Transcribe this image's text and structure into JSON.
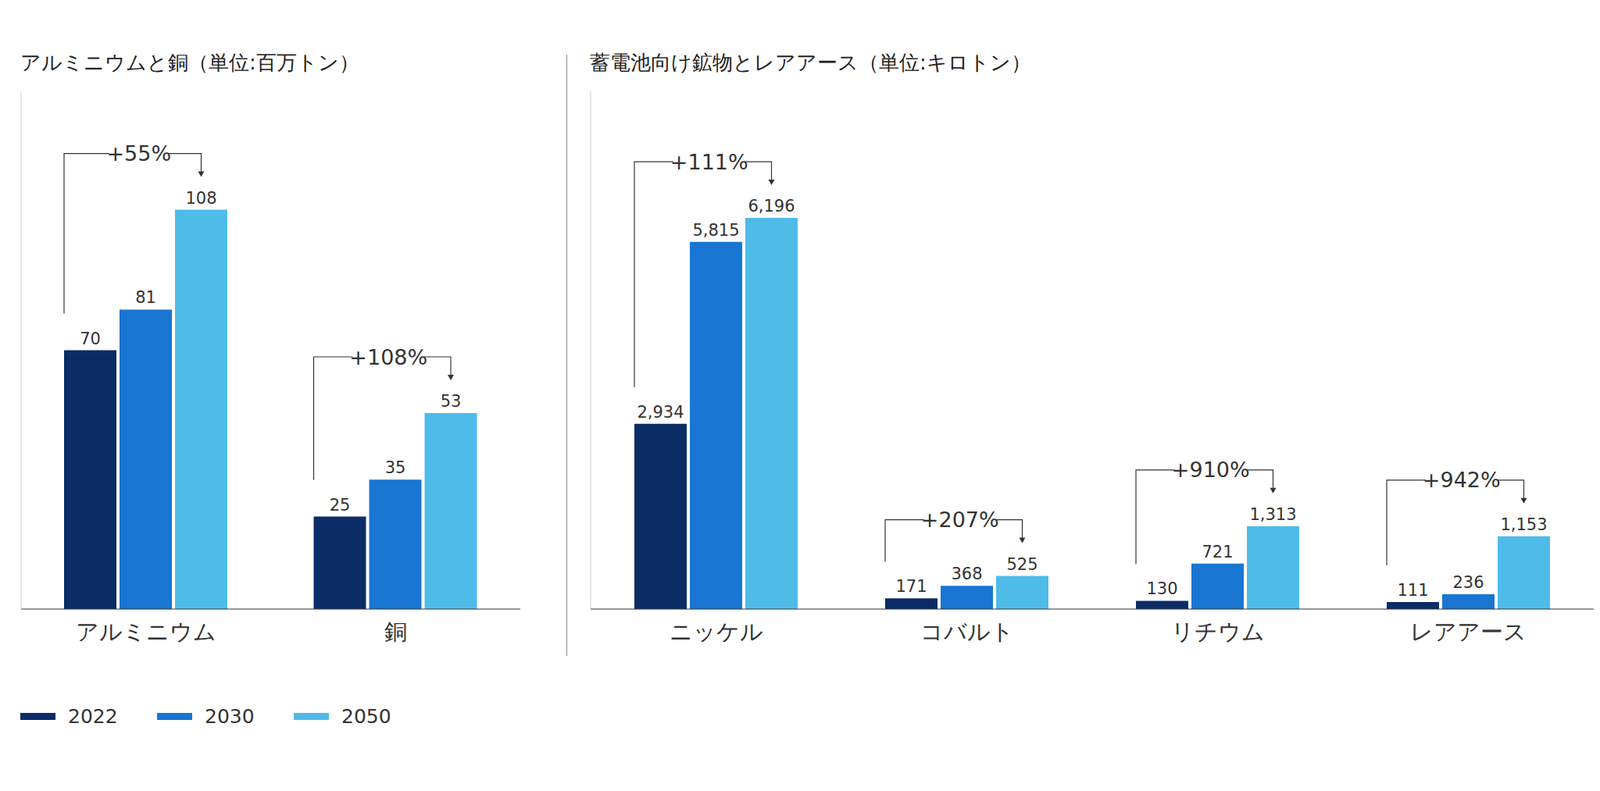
{
  "chart_data": [
    {
      "type": "bar",
      "title": "アルミニウムと銅（単位:百万トン）",
      "categories": [
        "アルミニウム",
        "銅"
      ],
      "series": [
        {
          "name": "2022",
          "color": "#0b2c66",
          "values": [
            70,
            25
          ]
        },
        {
          "name": "2030",
          "color": "#1976d2",
          "values": [
            81,
            35
          ]
        },
        {
          "name": "2050",
          "color": "#4fbbe9",
          "values": [
            108,
            53
          ]
        }
      ],
      "annotations": [
        {
          "category": "アルミニウム",
          "text": "+55%"
        },
        {
          "category": "銅",
          "text": "+108%"
        }
      ],
      "ylim": [
        0,
        140
      ],
      "data_labels": true,
      "tick_labels": "x",
      "grid": false,
      "legend": "bottom left"
    },
    {
      "type": "bar",
      "title": "蓄電池向け鉱物とレアアース（単位:キロトン）",
      "categories": [
        "ニッケル",
        "コバルト",
        "リチウム",
        "レアアース"
      ],
      "series": [
        {
          "name": "2022",
          "color": "#0b2c66",
          "values": [
            2934,
            171,
            130,
            111
          ],
          "value_labels": [
            "2,934",
            "171",
            "130",
            "111"
          ]
        },
        {
          "name": "2030",
          "color": "#1976d2",
          "values": [
            5815,
            368,
            721,
            236
          ],
          "value_labels": [
            "5,815",
            "368",
            "721",
            "236"
          ]
        },
        {
          "name": "2050",
          "color": "#4fbbe9",
          "values": [
            6196,
            525,
            1313,
            1153
          ],
          "value_labels": [
            "6,196",
            "525",
            "1,313",
            "1,153"
          ]
        }
      ],
      "annotations": [
        {
          "category": "ニッケル",
          "text": "+111%"
        },
        {
          "category": "コバルト",
          "text": "+207%"
        },
        {
          "category": "リチウム",
          "text": "+910%"
        },
        {
          "category": "レアアース",
          "text": "+942%"
        }
      ],
      "ylim": [
        0,
        8200
      ],
      "data_labels": true,
      "tick_labels": "x",
      "grid": false
    }
  ]
}
